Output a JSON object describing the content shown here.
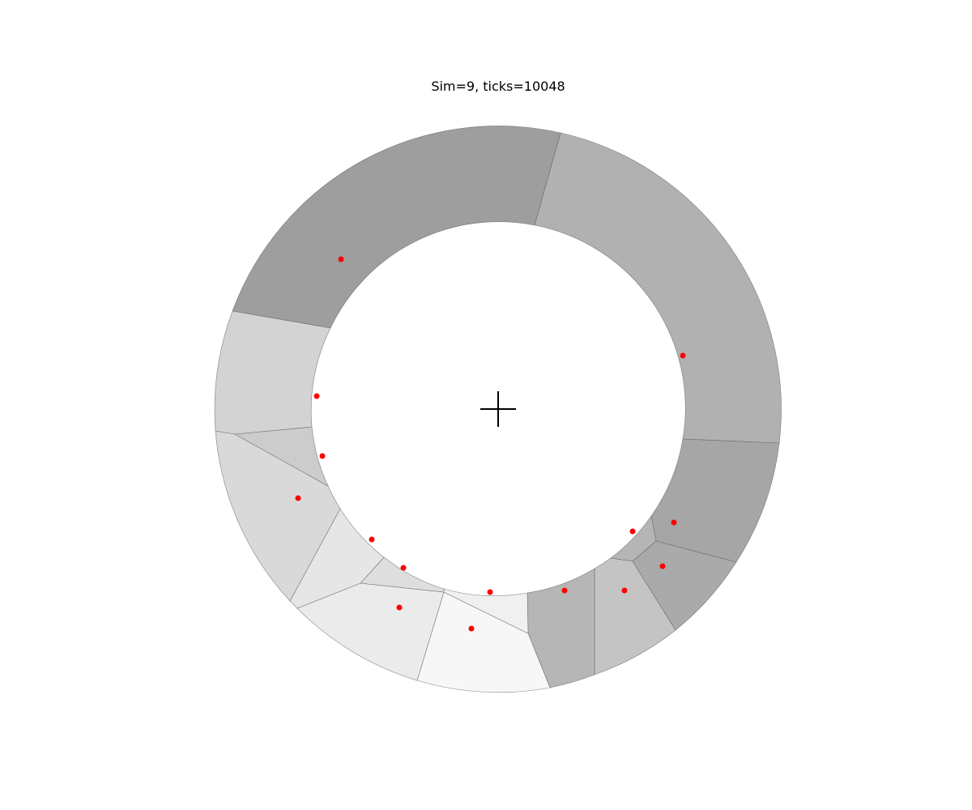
{
  "title": "Sim=9, ticks=10048",
  "colors": {
    "agent": "#ff0000",
    "center_marker": "#000000",
    "cell_border": "#555555"
  },
  "ring": {
    "cells": [
      {
        "name": "cell-top-left",
        "shade": "#9e9e9e"
      },
      {
        "name": "cell-top-right",
        "shade": "#b1b1b1"
      },
      {
        "name": "cell-right-lower",
        "shade": "#a6a6a6"
      },
      {
        "name": "cell-right-small",
        "shade": "#b5b5b5"
      },
      {
        "name": "cell-lower-right",
        "shade": "#aaaaaa"
      },
      {
        "name": "cell-bottom-right",
        "shade": "#c4c4c4"
      },
      {
        "name": "cell-bottom-right-inner",
        "shade": "#b6b6b6"
      },
      {
        "name": "cell-bottom-center",
        "shade": "#f7f7f7"
      },
      {
        "name": "cell-bottom-center-inner",
        "shade": "#f0f0f0"
      },
      {
        "name": "cell-bottom-left",
        "shade": "#ebebeb"
      },
      {
        "name": "cell-bottom-left-inner",
        "shade": "#dedede"
      },
      {
        "name": "cell-lower-left-inner",
        "shade": "#e6e6e6"
      },
      {
        "name": "cell-lower-left",
        "shade": "#d9d9d9"
      },
      {
        "name": "cell-left-small",
        "shade": "#cccccc"
      },
      {
        "name": "cell-left",
        "shade": "#d3d3d3"
      }
    ]
  }
}
